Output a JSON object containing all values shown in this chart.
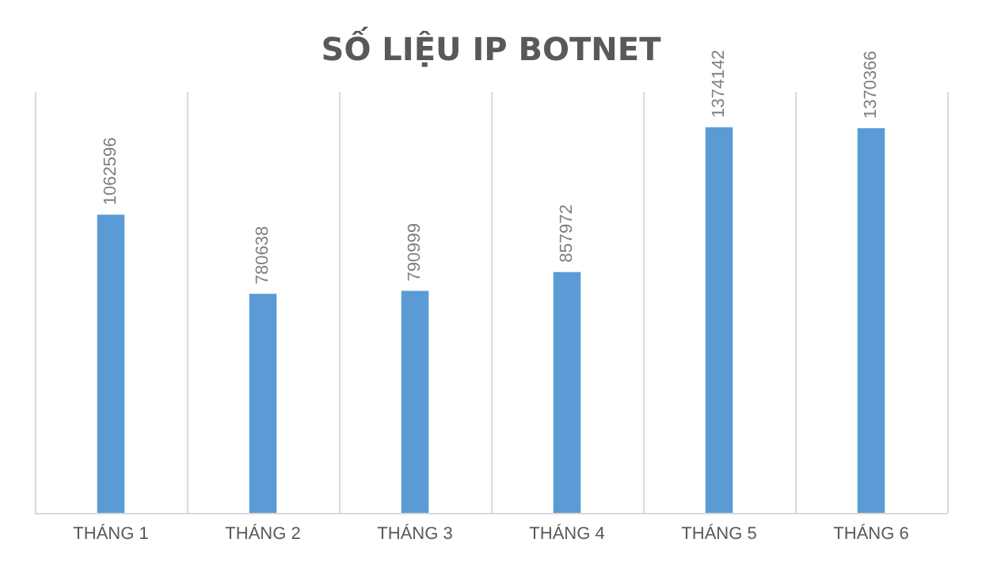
{
  "chart_data": {
    "type": "bar",
    "title": "SỐ LIỆU IP BOTNET",
    "categories": [
      "THÁNG 1",
      "THÁNG 2",
      "THÁNG 3",
      "THÁNG 4",
      "THÁNG 5",
      "THÁNG 6"
    ],
    "values": [
      1062596,
      780638,
      790999,
      857972,
      1374142,
      1370366
    ],
    "color": "#5b9bd5",
    "data_labels": true,
    "grid": "x"
  }
}
